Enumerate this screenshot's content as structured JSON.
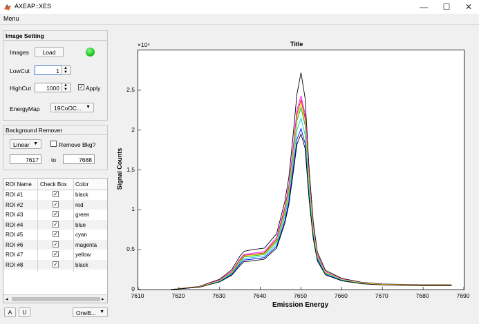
{
  "window": {
    "title": "AXEAP::XES",
    "minimize": "—",
    "maximize": "☐",
    "close": "✕"
  },
  "menu": {
    "label": "Menu"
  },
  "image_setting": {
    "title": "Image Setting",
    "images_label": "Images",
    "load_button": "Load",
    "status_color": "#22cc22",
    "lowcut_label": "LowCut",
    "lowcut_value": "1",
    "highcut_label": "HighCut",
    "highcut_value": "1000",
    "apply_label": "Apply",
    "apply_checked": true,
    "energymap_label": "EnergyMap",
    "energymap_value": "19CoOC..."
  },
  "background_remover": {
    "title": "Background Remover",
    "method_value": "Linear",
    "remove_bkg_label": "Remove Bkg?",
    "from_value": "7617",
    "to_label": "to",
    "to_value": "7688"
  },
  "roi_table": {
    "headers": [
      "ROI Name",
      "Check Box",
      "Color"
    ],
    "rows": [
      {
        "name": "ROI #1",
        "checked": true,
        "color": "black"
      },
      {
        "name": "ROI #2",
        "checked": true,
        "color": "red"
      },
      {
        "name": "ROI #3",
        "checked": true,
        "color": "green"
      },
      {
        "name": "ROI #4",
        "checked": true,
        "color": "blue"
      },
      {
        "name": "ROI #5",
        "checked": true,
        "color": "cyan"
      },
      {
        "name": "ROI #6",
        "checked": true,
        "color": "magenta"
      },
      {
        "name": "ROI #7",
        "checked": true,
        "color": "yellow"
      },
      {
        "name": "ROI #8",
        "checked": true,
        "color": "black"
      }
    ]
  },
  "bottom_bar": {
    "a_button": "A",
    "u_button": "U",
    "mode_value": "OneB..."
  },
  "chart_data": {
    "type": "line",
    "title": "Title",
    "xlabel": "Emission Energy",
    "ylabel": "Signal Counts",
    "y_exponent_label": "×10⁴",
    "xlim": [
      7610,
      7690
    ],
    "ylim": [
      0,
      30000
    ],
    "xticks": [
      "7610",
      "7620",
      "7630",
      "7640",
      "7650",
      "7660",
      "7670",
      "7680",
      "7690"
    ],
    "yticks": [
      "0",
      "0.5",
      "1",
      "1.5",
      "2",
      "2.5"
    ],
    "series": [
      {
        "color": "#000000",
        "x": [
          7618,
          7625,
          7630,
          7633,
          7635,
          7636,
          7638,
          7641,
          7644,
          7646,
          7647,
          7648,
          7649,
          7650,
          7651,
          7652,
          7653,
          7654,
          7656,
          7660,
          7665,
          7670,
          7680,
          7687
        ],
        "y": [
          0,
          400,
          1300,
          2500,
          4200,
          4800,
          5000,
          5200,
          7000,
          11000,
          14000,
          19000,
          24500,
          27200,
          24000,
          15000,
          8500,
          4700,
          2400,
          1400,
          900,
          700,
          600,
          600
        ]
      },
      {
        "color": "#cc0000",
        "x": [
          7618,
          7625,
          7630,
          7633,
          7635,
          7636,
          7638,
          7641,
          7644,
          7646,
          7647,
          7648,
          7649,
          7650,
          7651,
          7652,
          7653,
          7654,
          7656,
          7660,
          7665,
          7670,
          7680,
          7687
        ],
        "y": [
          0,
          350,
          1150,
          2200,
          3700,
          4300,
          4400,
          4600,
          6300,
          10000,
          12700,
          17000,
          22000,
          23800,
          21500,
          13500,
          7700,
          4300,
          2200,
          1300,
          850,
          650,
          550,
          550
        ]
      },
      {
        "color": "#00aa00",
        "x": [
          7618,
          7625,
          7630,
          7633,
          7635,
          7636,
          7638,
          7641,
          7644,
          7646,
          7647,
          7648,
          7649,
          7650,
          7651,
          7652,
          7653,
          7654,
          7656,
          7660,
          7665,
          7670,
          7680,
          7687
        ],
        "y": [
          0,
          330,
          1100,
          2100,
          3500,
          4100,
          4200,
          4400,
          6000,
          9600,
          12200,
          16400,
          21200,
          22800,
          20600,
          13000,
          7400,
          4100,
          2100,
          1250,
          820,
          630,
          540,
          540
        ]
      },
      {
        "color": "#0000ff",
        "x": [
          7618,
          7625,
          7630,
          7633,
          7635,
          7636,
          7638,
          7641,
          7644,
          7646,
          7647,
          7648,
          7649,
          7650,
          7651,
          7652,
          7653,
          7654,
          7656,
          7660,
          7665,
          7670,
          7680,
          7687
        ],
        "y": [
          0,
          300,
          1000,
          1900,
          3200,
          3700,
          3800,
          4000,
          5400,
          8600,
          11000,
          14800,
          18800,
          20200,
          18300,
          11600,
          6700,
          3800,
          1900,
          1150,
          750,
          600,
          500,
          500
        ]
      },
      {
        "color": "#00cccc",
        "x": [
          7618,
          7625,
          7630,
          7633,
          7635,
          7636,
          7638,
          7641,
          7644,
          7646,
          7647,
          7648,
          7649,
          7650,
          7651,
          7652,
          7653,
          7654,
          7656,
          7660,
          7665,
          7670,
          7680,
          7687
        ],
        "y": [
          0,
          320,
          1050,
          2000,
          3350,
          3900,
          4000,
          4200,
          5700,
          9100,
          11600,
          15600,
          20000,
          21500,
          19400,
          12300,
          7000,
          3950,
          2000,
          1200,
          780,
          620,
          520,
          520
        ]
      },
      {
        "color": "#ff00ff",
        "x": [
          7618,
          7625,
          7630,
          7633,
          7635,
          7636,
          7638,
          7641,
          7644,
          7646,
          7647,
          7648,
          7649,
          7650,
          7651,
          7652,
          7653,
          7654,
          7656,
          7660,
          7665,
          7670,
          7680,
          7687
        ],
        "y": [
          0,
          360,
          1200,
          2300,
          3800,
          4400,
          4550,
          4750,
          6500,
          10300,
          13000,
          17500,
          22500,
          24300,
          22000,
          13800,
          7900,
          4400,
          2250,
          1320,
          860,
          660,
          560,
          560
        ]
      },
      {
        "color": "#e6e600",
        "x": [
          7618,
          7625,
          7630,
          7633,
          7635,
          7636,
          7638,
          7641,
          7644,
          7646,
          7647,
          7648,
          7649,
          7650,
          7651,
          7652,
          7653,
          7654,
          7656,
          7660,
          7665,
          7670,
          7680,
          7687
        ],
        "y": [
          0,
          340,
          1120,
          2150,
          3600,
          4200,
          4300,
          4500,
          6150,
          9800,
          12400,
          16700,
          21600,
          23300,
          21000,
          13300,
          7550,
          4200,
          2150,
          1270,
          830,
          640,
          545,
          545
        ]
      },
      {
        "color": "#000000",
        "x": [
          7618,
          7625,
          7630,
          7633,
          7635,
          7636,
          7638,
          7641,
          7644,
          7646,
          7647,
          7648,
          7649,
          7650,
          7651,
          7652,
          7653,
          7654,
          7656,
          7660,
          7665,
          7670,
          7680,
          7687
        ],
        "y": [
          0,
          290,
          950,
          1800,
          3000,
          3500,
          3600,
          3800,
          5200,
          8300,
          10600,
          14300,
          18200,
          19500,
          17700,
          11200,
          6400,
          3600,
          1850,
          1100,
          720,
          580,
          480,
          480
        ]
      }
    ]
  }
}
